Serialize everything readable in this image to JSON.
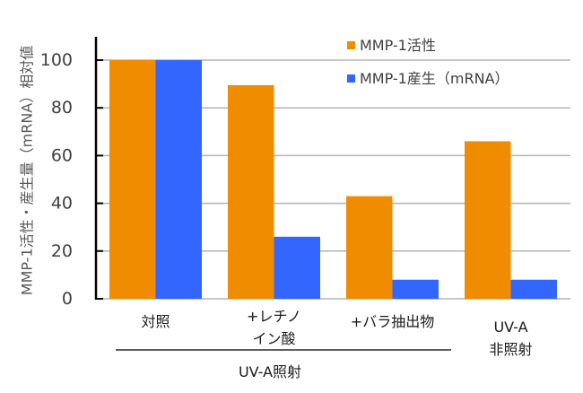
{
  "chart_data": {
    "type": "bar",
    "title": "",
    "xlabel": "",
    "ylabel": "MMP-1活性・産生量（mRNA）相対値",
    "ylim": [
      0,
      100
    ],
    "yticks": [
      0,
      20,
      40,
      60,
      80,
      100
    ],
    "ytick_labels": [
      "0",
      "20",
      "40",
      "60",
      "80",
      "100"
    ],
    "grid": true,
    "legend_position": "top-right",
    "categories": [
      [
        "対照"
      ],
      [
        "+レチノ",
        "イン酸"
      ],
      [
        "+バラ抽出物"
      ],
      [
        "UV-A",
        "非照射"
      ]
    ],
    "group_label": "UV-A照射",
    "series": [
      {
        "name": "MMP-1活性",
        "color": "#f08c00",
        "values": [
          100,
          89.5,
          43,
          66
        ]
      },
      {
        "name": "MMP-1産生（mRNA）",
        "color": "#3366ff",
        "values": [
          100,
          26,
          8,
          8
        ]
      }
    ]
  },
  "colors": {
    "axis": "#000000",
    "grid": "#b3b3b3"
  }
}
